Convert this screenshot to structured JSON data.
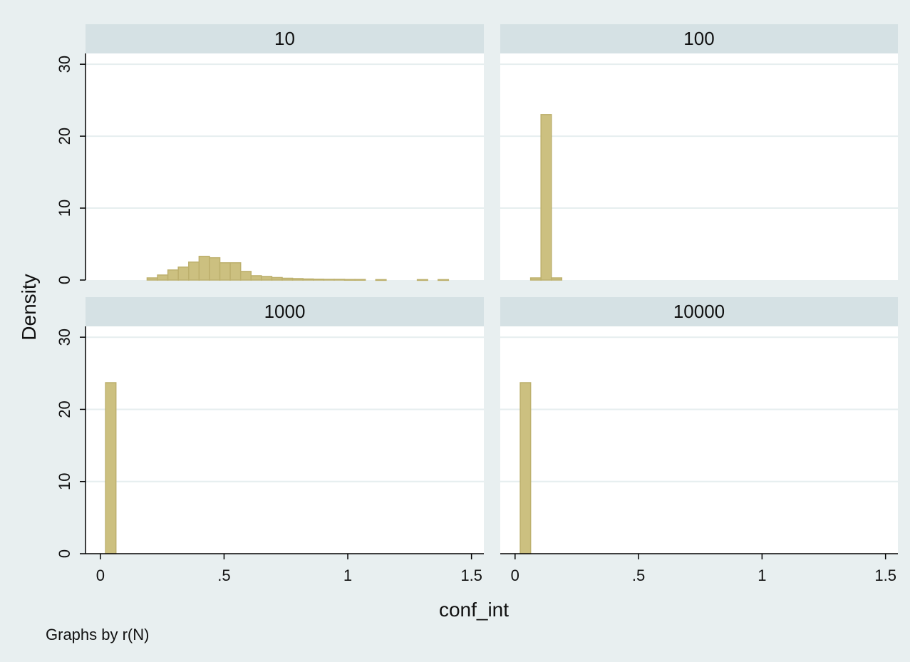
{
  "colors": {
    "background": "#e8eff0",
    "panel_background": "#ffffff",
    "strip_background": "#d5e1e4",
    "gridline": "#e6eeef",
    "axis": "#000000",
    "bar_fill": "#ccc080",
    "bar_stroke": "#bdb06d"
  },
  "chart_data": {
    "type": "bar",
    "subtype": "histogram",
    "by_variable_note": "Graphs by r(N)",
    "xlabel": "conf_int",
    "ylabel": "Density",
    "xlim": [
      -0.06,
      1.55
    ],
    "ylim": [
      0,
      31.5
    ],
    "xticks": [
      0,
      0.5,
      1,
      1.5
    ],
    "xtick_labels": [
      "0",
      ".5",
      "1",
      "1.5"
    ],
    "yticks": [
      0,
      10,
      20,
      30
    ],
    "ytick_labels": [
      "0",
      "10",
      "20",
      "30"
    ],
    "grid": true,
    "legend": "none",
    "panels": [
      {
        "title": "10",
        "bin_width": 0.042,
        "bins": [
          {
            "x": 0.21,
            "density": 0.3
          },
          {
            "x": 0.252,
            "density": 0.7
          },
          {
            "x": 0.294,
            "density": 1.4
          },
          {
            "x": 0.336,
            "density": 1.8
          },
          {
            "x": 0.378,
            "density": 2.5
          },
          {
            "x": 0.42,
            "density": 3.3
          },
          {
            "x": 0.462,
            "density": 3.1
          },
          {
            "x": 0.504,
            "density": 2.4
          },
          {
            "x": 0.546,
            "density": 2.4
          },
          {
            "x": 0.588,
            "density": 1.2
          },
          {
            "x": 0.63,
            "density": 0.6
          },
          {
            "x": 0.672,
            "density": 0.5
          },
          {
            "x": 0.714,
            "density": 0.35
          },
          {
            "x": 0.756,
            "density": 0.25
          },
          {
            "x": 0.798,
            "density": 0.2
          },
          {
            "x": 0.84,
            "density": 0.15
          },
          {
            "x": 0.882,
            "density": 0.12
          },
          {
            "x": 0.924,
            "density": 0.1
          },
          {
            "x": 0.966,
            "density": 0.1
          },
          {
            "x": 1.008,
            "density": 0.08
          },
          {
            "x": 1.05,
            "density": 0.08
          },
          {
            "x": 1.134,
            "density": 0.06
          },
          {
            "x": 1.302,
            "density": 0.06
          },
          {
            "x": 1.386,
            "density": 0.06
          }
        ]
      },
      {
        "title": "100",
        "bin_width": 0.042,
        "bins": [
          {
            "x": 0.084,
            "density": 0.3
          },
          {
            "x": 0.126,
            "density": 23.0
          },
          {
            "x": 0.168,
            "density": 0.3
          }
        ]
      },
      {
        "title": "1000",
        "bin_width": 0.042,
        "bins": [
          {
            "x": 0.042,
            "density": 23.7
          }
        ]
      },
      {
        "title": "10000",
        "bin_width": 0.042,
        "bins": [
          {
            "x": 0.042,
            "density": 23.7
          }
        ]
      }
    ]
  }
}
